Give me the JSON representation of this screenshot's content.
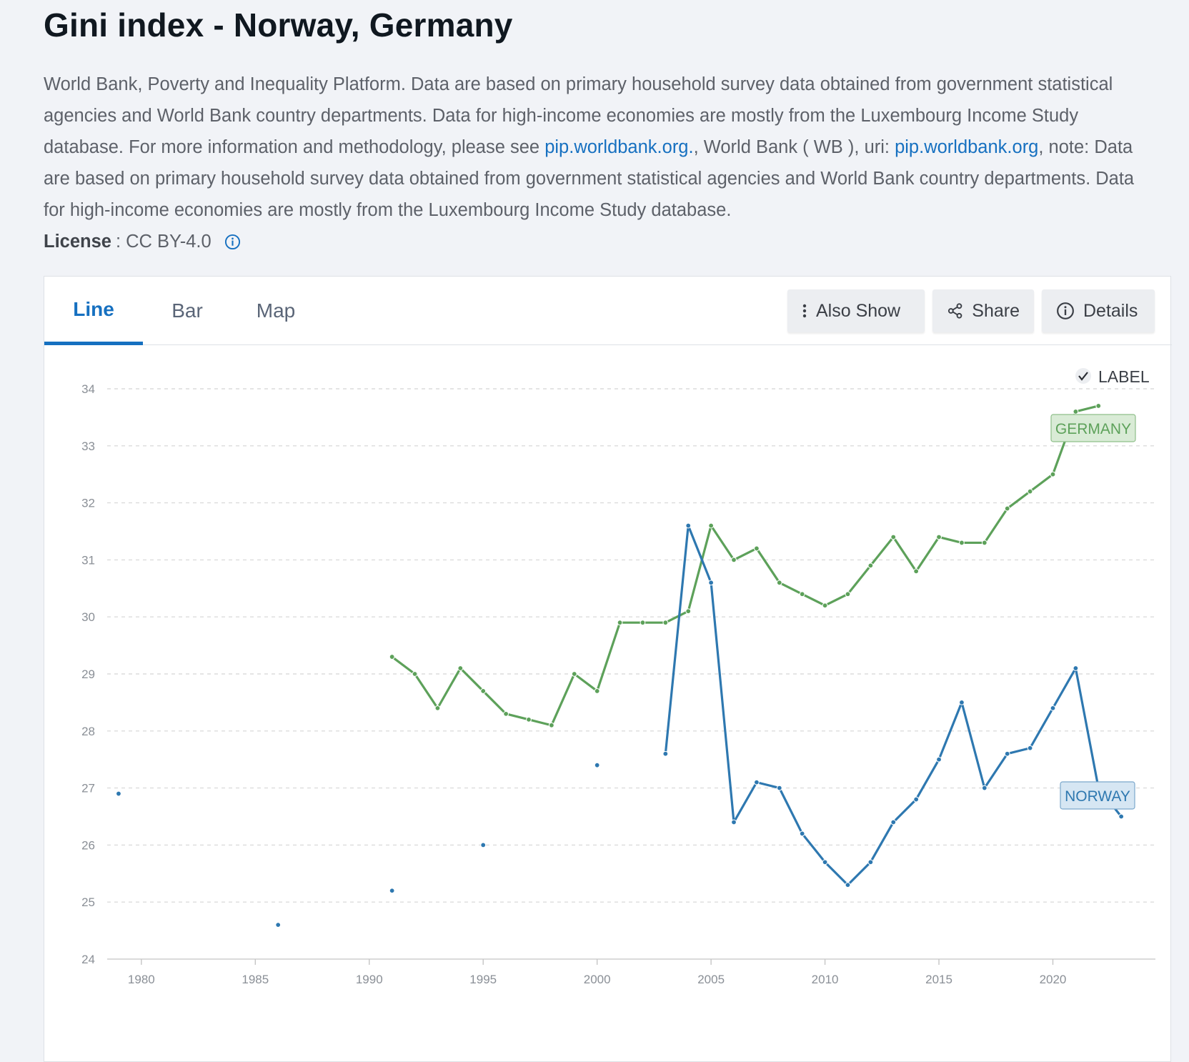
{
  "title": "Gini index - Norway, Germany",
  "description": {
    "part1": "World Bank, Poverty and Inequality Platform. Data are based on primary household survey data obtained from government statistical agencies and World Bank country departments. Data for high-income economies are mostly from the Luxembourg Income Study database. For more information and methodology, please see ",
    "link1": "pip.worldbank.org.",
    "part2": ", World Bank ( WB ), uri: ",
    "link2": "pip.worldbank.org",
    "part3": ", note: Data are based on primary household survey data obtained from government statistical agencies and World Bank country departments. Data for high-income economies are mostly from the Luxembourg Income Study database."
  },
  "license": {
    "label": "License",
    "value": ": CC BY-4.0",
    "icon": "info-icon"
  },
  "tabs": [
    {
      "label": "Line",
      "active": true
    },
    {
      "label": "Bar",
      "active": false
    },
    {
      "label": "Map",
      "active": false
    }
  ],
  "actions": {
    "also_show": "Also Show",
    "share": "Share",
    "details": "Details"
  },
  "label_toggle": {
    "label": "LABEL",
    "checked": true
  },
  "colors": {
    "germany": "#5da15a",
    "norway": "#2e78b0",
    "link": "#1670c0"
  },
  "chart_data": {
    "type": "line",
    "title": "",
    "xlabel": "",
    "ylabel": "",
    "xlim": [
      1978.5,
      2024.5
    ],
    "ylim": [
      24,
      34
    ],
    "x_ticks": [
      1980,
      1985,
      1990,
      1995,
      2000,
      2005,
      2010,
      2015,
      2020
    ],
    "y_ticks": [
      24,
      25,
      26,
      27,
      28,
      29,
      30,
      31,
      32,
      33,
      34
    ],
    "grid": true,
    "series": [
      {
        "name": "GERMANY",
        "color": "#5da15a",
        "points": [
          [
            1991,
            29.3
          ],
          [
            1992,
            29.0
          ],
          [
            1993,
            28.4
          ],
          [
            1994,
            29.1
          ],
          [
            1995,
            28.7
          ],
          [
            1996,
            28.3
          ],
          [
            1997,
            28.2
          ],
          [
            1998,
            28.1
          ],
          [
            1999,
            29.0
          ],
          [
            2000,
            28.7
          ],
          [
            2001,
            29.9
          ],
          [
            2002,
            29.9
          ],
          [
            2003,
            29.9
          ],
          [
            2004,
            30.1
          ],
          [
            2005,
            31.6
          ],
          [
            2006,
            31.0
          ],
          [
            2007,
            31.2
          ],
          [
            2008,
            30.6
          ],
          [
            2009,
            30.4
          ],
          [
            2010,
            30.2
          ],
          [
            2011,
            30.4
          ],
          [
            2012,
            30.9
          ],
          [
            2013,
            31.4
          ],
          [
            2014,
            30.8
          ],
          [
            2015,
            31.4
          ],
          [
            2016,
            31.3
          ],
          [
            2017,
            31.3
          ],
          [
            2018,
            31.9
          ],
          [
            2019,
            32.2
          ],
          [
            2020,
            32.5
          ],
          [
            2021,
            33.6
          ],
          [
            2022,
            33.7
          ]
        ]
      },
      {
        "name": "NORWAY",
        "color": "#2e78b0",
        "points": [
          [
            1979,
            26.9
          ],
          [
            1986,
            24.6
          ],
          [
            1991,
            25.2
          ],
          [
            1995,
            26.0
          ],
          [
            2000,
            27.4
          ],
          [
            2003,
            27.6
          ],
          [
            2004,
            31.6
          ],
          [
            2005,
            30.6
          ],
          [
            2006,
            26.4
          ],
          [
            2007,
            27.1
          ],
          [
            2008,
            27.0
          ],
          [
            2009,
            26.2
          ],
          [
            2010,
            25.7
          ],
          [
            2011,
            25.3
          ],
          [
            2012,
            25.7
          ],
          [
            2013,
            26.4
          ],
          [
            2014,
            26.8
          ],
          [
            2015,
            27.5
          ],
          [
            2016,
            28.5
          ],
          [
            2017,
            27.0
          ],
          [
            2018,
            27.6
          ],
          [
            2019,
            27.7
          ],
          [
            2020,
            28.4
          ],
          [
            2021,
            29.1
          ],
          [
            2022,
            27.0
          ],
          [
            2023,
            26.5
          ]
        ]
      }
    ]
  }
}
